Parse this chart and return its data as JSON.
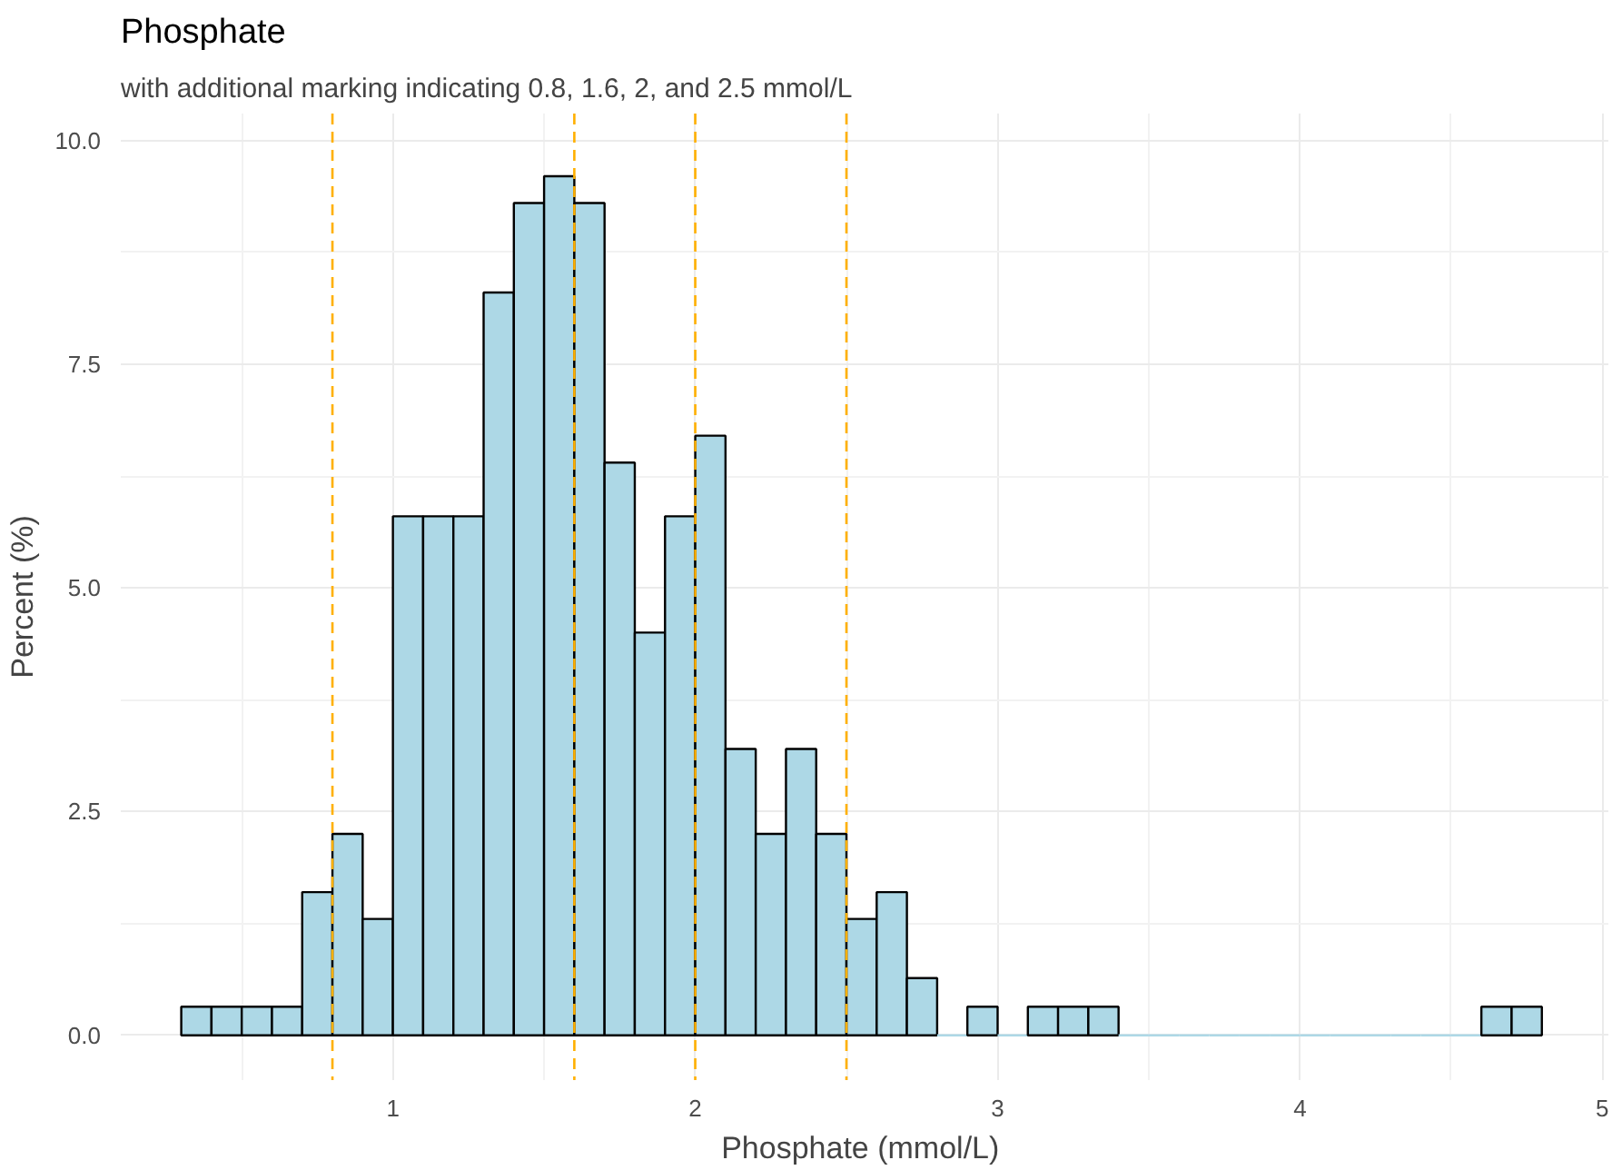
{
  "chart_data": {
    "type": "histogram",
    "title": "Phosphate",
    "subtitle": "with additional marking indicating 0.8, 1.6, 2, and 2.5 mmol/L",
    "xlabel": "Phosphate  (mmol/L)",
    "ylabel": "Percent (%)",
    "bins": [
      0.3,
      0.4,
      0.5,
      0.6,
      0.7,
      0.8,
      0.9,
      1.0,
      1.1,
      1.2,
      1.3,
      1.4,
      1.5,
      1.6,
      1.7,
      1.8,
      1.9,
      2.0,
      2.1,
      2.2,
      2.3,
      2.4,
      2.5,
      2.6,
      2.7,
      2.8,
      2.9,
      3.0,
      3.1,
      3.2,
      3.3,
      3.4,
      3.5,
      3.6,
      3.7,
      3.8,
      3.9,
      4.0,
      4.1,
      4.2,
      4.3,
      4.4,
      4.5,
      4.6,
      4.7,
      4.8
    ],
    "values": [
      0.32,
      0.32,
      0.32,
      0.32,
      1.6,
      2.25,
      1.3,
      5.8,
      5.8,
      5.8,
      8.3,
      9.3,
      9.6,
      9.3,
      6.4,
      4.5,
      5.8,
      6.7,
      3.2,
      2.25,
      3.2,
      2.25,
      1.3,
      1.6,
      0.64,
      0,
      0.32,
      0,
      0.32,
      0.32,
      0.32,
      0,
      0,
      0,
      0,
      0,
      0,
      0,
      0,
      0,
      0,
      0,
      0,
      0.32,
      0.32
    ],
    "color": "#add8e6",
    "xlim": [
      0.1,
      5.02
    ],
    "ylim": [
      -0.5,
      10.3
    ],
    "xticks": [
      1,
      2,
      3,
      4,
      5
    ],
    "yticks": [
      {
        "value": 0,
        "label": "0.0"
      },
      {
        "value": 2.5,
        "label": "2.5"
      },
      {
        "value": 5,
        "label": "5.0"
      },
      {
        "value": 7.5,
        "label": "7.5"
      },
      {
        "value": 10,
        "label": "10.0"
      }
    ],
    "grid": true,
    "ref_lines": [
      {
        "axis": "x",
        "value": 0.8,
        "color": "#ffb000",
        "line_style": "dashed"
      },
      {
        "axis": "x",
        "value": 1.6,
        "color": "#ffb000",
        "line_style": "dashed"
      },
      {
        "axis": "x",
        "value": 2,
        "color": "#ffb000",
        "line_style": "dashed"
      },
      {
        "axis": "x",
        "value": 2.5,
        "color": "#ffb000",
        "line_style": "dashed"
      }
    ]
  }
}
